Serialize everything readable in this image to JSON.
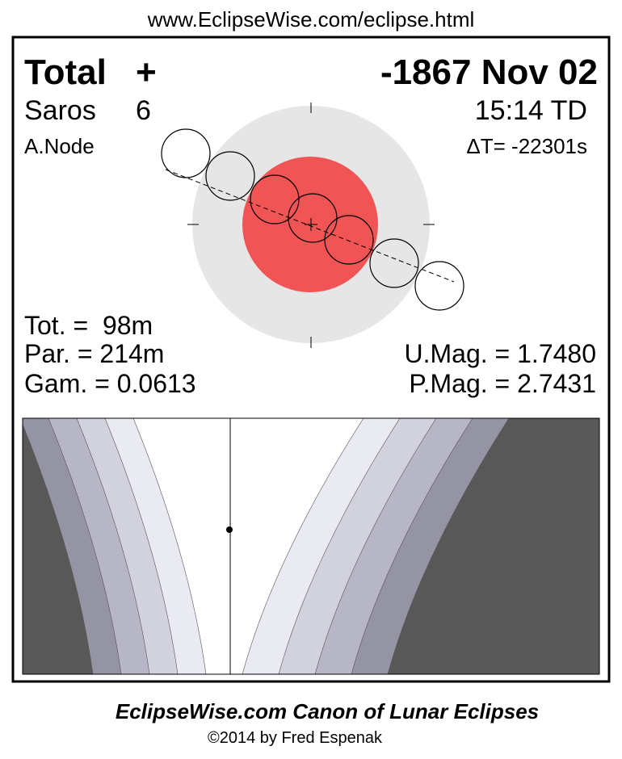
{
  "header": {
    "url": "www.EclipseWise.com/eclipse.html"
  },
  "eclipse": {
    "type": "Total",
    "symbol": "+",
    "date": "-1867 Nov 02",
    "saros_label": "Saros",
    "saros": "6",
    "time": "15:14 TD",
    "node": "A.Node",
    "delta_t": "ΔT= -22301s"
  },
  "stats": {
    "tot": "Tot. =  98m",
    "par": "Par. = 214m",
    "gam": "Gam. = 0.0613",
    "umag": "U.Mag. = 1.7480",
    "pmag": "P.Mag. = 2.7431"
  },
  "footer": {
    "title": "EclipseWise.com Canon of Lunar Eclipses",
    "copyright": "©2014 by Fred Espenak"
  }
}
